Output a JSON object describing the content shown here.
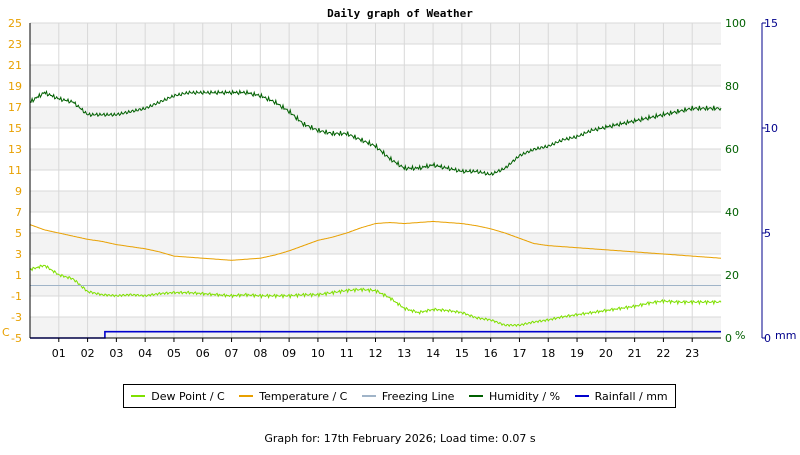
{
  "chart_data": {
    "type": "line",
    "title": "Daily graph of Weather",
    "x_ticks": [
      "01",
      "02",
      "03",
      "04",
      "05",
      "06",
      "07",
      "08",
      "09",
      "10",
      "11",
      "12",
      "13",
      "14",
      "15",
      "16",
      "17",
      "18",
      "19",
      "20",
      "21",
      "22",
      "23"
    ],
    "x_range_hours": [
      0,
      24
    ],
    "left_axis": {
      "unit": "C",
      "ticks": [
        -5,
        -3,
        -1,
        1,
        3,
        5,
        7,
        9,
        11,
        13,
        15,
        17,
        19,
        21,
        23,
        25
      ],
      "ylim": [
        -5,
        25
      ]
    },
    "humidity_axis": {
      "unit": "%",
      "ticks": [
        0,
        20,
        40,
        60,
        80,
        100
      ],
      "ylim": [
        0,
        100
      ]
    },
    "rain_axis": {
      "unit": "mm",
      "ticks": [
        0,
        5,
        10,
        15
      ],
      "ylim": [
        0,
        15
      ]
    },
    "grid": true,
    "legend_position": "bottom",
    "series": [
      {
        "name": "Dew Point / C",
        "color": "#7fe000",
        "axis": "left",
        "x": [
          0,
          0.5,
          1,
          1.5,
          2,
          2.5,
          3,
          3.5,
          4,
          4.5,
          5,
          5.5,
          6,
          6.5,
          7,
          7.5,
          8,
          8.5,
          9,
          9.5,
          10,
          10.5,
          11,
          11.5,
          12,
          12.5,
          13,
          13.5,
          14,
          14.5,
          15,
          15.5,
          16,
          16.5,
          17,
          17.5,
          18,
          18.5,
          19,
          19.5,
          20,
          20.5,
          21,
          21.5,
          22,
          22.5,
          23,
          23.5,
          24
        ],
        "y": [
          1.5,
          1.9,
          1.0,
          0.6,
          -0.6,
          -0.9,
          -1.0,
          -0.9,
          -1.0,
          -0.8,
          -0.7,
          -0.7,
          -0.8,
          -0.9,
          -1.0,
          -0.9,
          -1.0,
          -1.0,
          -1.0,
          -0.9,
          -0.9,
          -0.7,
          -0.5,
          -0.4,
          -0.5,
          -1.2,
          -2.2,
          -2.6,
          -2.3,
          -2.4,
          -2.6,
          -3.1,
          -3.3,
          -3.8,
          -3.8,
          -3.5,
          -3.3,
          -3.0,
          -2.8,
          -2.6,
          -2.4,
          -2.2,
          -2.0,
          -1.7,
          -1.5,
          -1.6,
          -1.6,
          -1.6,
          -1.6
        ]
      },
      {
        "name": "Temperature / C",
        "color": "#e8a000",
        "axis": "left",
        "x": [
          0,
          0.5,
          1,
          1.5,
          2,
          2.5,
          3,
          3.5,
          4,
          4.5,
          5,
          5.5,
          6,
          6.5,
          7,
          7.5,
          8,
          8.5,
          9,
          9.5,
          10,
          10.5,
          11,
          11.5,
          12,
          12.5,
          13,
          13.5,
          14,
          14.5,
          15,
          15.5,
          16,
          16.5,
          17,
          17.5,
          18,
          18.5,
          19,
          19.5,
          20,
          20.5,
          21,
          21.5,
          22,
          22.5,
          23,
          23.5,
          24
        ],
        "y": [
          5.8,
          5.3,
          5.0,
          4.7,
          4.4,
          4.2,
          3.9,
          3.7,
          3.5,
          3.2,
          2.8,
          2.7,
          2.6,
          2.5,
          2.4,
          2.5,
          2.6,
          2.9,
          3.3,
          3.8,
          4.3,
          4.6,
          5.0,
          5.5,
          5.9,
          6.0,
          5.9,
          6.0,
          6.1,
          6.0,
          5.9,
          5.7,
          5.4,
          5.0,
          4.5,
          4.0,
          3.8,
          3.7,
          3.6,
          3.5,
          3.4,
          3.3,
          3.2,
          3.1,
          3.0,
          2.9,
          2.8,
          2.7,
          2.6
        ]
      },
      {
        "name": "Freezing Line",
        "color": "#a0b4c8",
        "axis": "left",
        "x": [
          0,
          24
        ],
        "y": [
          0,
          0
        ]
      },
      {
        "name": "Humidity / %",
        "color": "#006000",
        "axis": "humidity",
        "x": [
          0,
          0.5,
          1,
          1.5,
          2,
          2.5,
          3,
          3.5,
          4,
          4.5,
          5,
          5.5,
          6,
          6.5,
          7,
          7.5,
          8,
          8.5,
          9,
          9.5,
          10,
          10.5,
          11,
          11.5,
          12,
          12.5,
          13,
          13.5,
          14,
          14.5,
          15,
          15.5,
          16,
          16.5,
          17,
          17.5,
          18,
          18.5,
          19,
          19.5,
          20,
          20.5,
          21,
          21.5,
          22,
          22.5,
          23,
          23.5,
          24
        ],
        "y": [
          75,
          78,
          76,
          75,
          71,
          71,
          71,
          72,
          73,
          75,
          77,
          78,
          78,
          78,
          78,
          78,
          77,
          75,
          72,
          68,
          66,
          65,
          65,
          63,
          61,
          57,
          54,
          54,
          55,
          54,
          53,
          53,
          52,
          54,
          58,
          60,
          61,
          63,
          64,
          66,
          67,
          68,
          69,
          70,
          71,
          72,
          73,
          73,
          73
        ]
      },
      {
        "name": "Rainfall / mm",
        "color": "#0000cc",
        "axis": "rain",
        "x": [
          0,
          2.6,
          2.6,
          24
        ],
        "y": [
          0,
          0,
          0.3,
          0.3
        ]
      }
    ]
  },
  "footer": "Graph for: 17th February 2026; Load time: 0.07 s"
}
